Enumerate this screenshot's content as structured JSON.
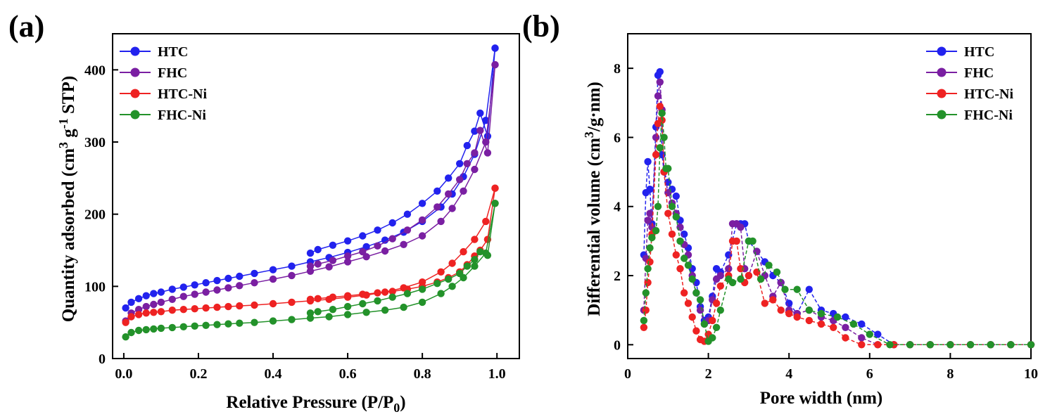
{
  "chart_data": [
    {
      "panel": "(a)",
      "type": "line",
      "title": "",
      "xlabel": "Relative Pressure (P/P",
      "xlabel_sub": "0",
      "xlabel_end": ")",
      "ylabel": "Quantity adsorbed (cm",
      "ylabel_sup1": "3",
      "ylabel_mid": " g",
      "ylabel_sup2": "-1",
      "ylabel_end": " STP)",
      "xlim": [
        -0.03,
        1.06
      ],
      "ylim": [
        0,
        450
      ],
      "xticks": [
        0.0,
        0.2,
        0.4,
        0.6,
        0.8,
        1.0
      ],
      "xtick_labels": [
        "0.0",
        "0.2",
        "0.4",
        "0.6",
        "0.8",
        "1.0"
      ],
      "yticks": [
        0,
        100,
        200,
        300,
        400
      ],
      "ytick_labels": [
        "0",
        "100",
        "200",
        "300",
        "400"
      ],
      "legend_position": "top-left",
      "series": [
        {
          "name": "HTC",
          "color": "#2222ee",
          "adsorption": {
            "x": [
              0.005,
              0.02,
              0.04,
              0.06,
              0.08,
              0.1,
              0.13,
              0.16,
              0.19,
              0.22,
              0.25,
              0.28,
              0.31,
              0.35,
              0.4,
              0.45,
              0.5,
              0.55,
              0.6,
              0.65,
              0.7,
              0.75,
              0.8,
              0.85,
              0.88,
              0.91,
              0.94,
              0.97,
              0.995
            ],
            "y": [
              70,
              78,
              83,
              87,
              90,
              92,
              96,
              99,
              102,
              105,
              108,
              111,
              114,
              118,
              123,
              128,
              134,
              140,
              147,
              155,
              164,
              175,
              190,
              210,
              228,
              252,
              283,
              330,
              430
            ]
          },
          "desorption": {
            "x": [
              0.995,
              0.975,
              0.955,
              0.94,
              0.92,
              0.9,
              0.87,
              0.84,
              0.8,
              0.76,
              0.72,
              0.68,
              0.64,
              0.6,
              0.56,
              0.52,
              0.5
            ],
            "y": [
              430,
              308,
              340,
              315,
              295,
              270,
              250,
              232,
              215,
              200,
              188,
              178,
              170,
              163,
              157,
              151,
              146
            ]
          }
        },
        {
          "name": "FHC",
          "color": "#7a1fa2",
          "adsorption": {
            "x": [
              0.005,
              0.02,
              0.04,
              0.06,
              0.08,
              0.1,
              0.13,
              0.16,
              0.19,
              0.22,
              0.25,
              0.28,
              0.31,
              0.35,
              0.4,
              0.45,
              0.5,
              0.55,
              0.6,
              0.65,
              0.7,
              0.75,
              0.8,
              0.85,
              0.88,
              0.91,
              0.94,
              0.97,
              0.995
            ],
            "y": [
              52,
              63,
              68,
              72,
              75,
              78,
              82,
              86,
              89,
              92,
              95,
              98,
              101,
              105,
              110,
              115,
              121,
              127,
              134,
              141,
              149,
              158,
              170,
              190,
              208,
              232,
              262,
              300,
              407
            ]
          },
          "desorption": {
            "x": [
              0.995,
              0.975,
              0.955,
              0.94,
              0.92,
              0.9,
              0.87,
              0.84,
              0.8,
              0.76,
              0.72,
              0.68,
              0.64,
              0.6,
              0.56,
              0.52,
              0.5
            ],
            "y": [
              407,
              285,
              316,
              285,
              270,
              248,
              228,
              210,
              192,
              178,
              166,
              156,
              148,
              142,
              136,
              131,
              128
            ]
          }
        },
        {
          "name": "HTC-Ni",
          "color": "#ee2222",
          "adsorption": {
            "x": [
              0.005,
              0.02,
              0.04,
              0.06,
              0.08,
              0.1,
              0.13,
              0.16,
              0.19,
              0.22,
              0.25,
              0.28,
              0.31,
              0.35,
              0.4,
              0.45,
              0.5,
              0.55,
              0.6,
              0.65,
              0.7,
              0.75,
              0.8,
              0.85,
              0.88,
              0.91,
              0.94,
              0.97,
              0.995
            ],
            "y": [
              50,
              58,
              61,
              63,
              64,
              65,
              67,
              68,
              69,
              70,
              71,
              72,
              73,
              74,
              76,
              78,
              80,
              82,
              85,
              88,
              92,
              98,
              106,
              120,
              132,
              148,
              165,
              190,
              236
            ]
          },
          "desorption": {
            "x": [
              0.995,
              0.975,
              0.955,
              0.94,
              0.92,
              0.9,
              0.87,
              0.84,
              0.8,
              0.76,
              0.72,
              0.68,
              0.64,
              0.6,
              0.56,
              0.52,
              0.5
            ],
            "y": [
              236,
              165,
              150,
              142,
              130,
              120,
              112,
              106,
              100,
              96,
              93,
              91,
              89,
              87,
              85,
              83,
              82
            ]
          }
        },
        {
          "name": "FHC-Ni",
          "color": "#23922a",
          "adsorption": {
            "x": [
              0.005,
              0.02,
              0.04,
              0.06,
              0.08,
              0.1,
              0.13,
              0.16,
              0.19,
              0.22,
              0.25,
              0.28,
              0.31,
              0.35,
              0.4,
              0.45,
              0.5,
              0.55,
              0.6,
              0.65,
              0.7,
              0.75,
              0.8,
              0.85,
              0.88,
              0.91,
              0.94,
              0.97,
              0.995
            ],
            "y": [
              30,
              36,
              39,
              40,
              41,
              42,
              43,
              44,
              45,
              46,
              47,
              48,
              49,
              50,
              52,
              54,
              56,
              58,
              61,
              64,
              67,
              71,
              78,
              90,
              100,
              112,
              128,
              146,
              215
            ]
          },
          "desorption": {
            "x": [
              0.995,
              0.975,
              0.955,
              0.94,
              0.92,
              0.9,
              0.87,
              0.84,
              0.8,
              0.76,
              0.72,
              0.68,
              0.64,
              0.6,
              0.56,
              0.52,
              0.5
            ],
            "y": [
              215,
              143,
              148,
              137,
              128,
              118,
              110,
              104,
              96,
              90,
              85,
              80,
              76,
              72,
              68,
              65,
              63
            ]
          }
        }
      ]
    },
    {
      "panel": "(b)",
      "type": "line",
      "title": "",
      "xlabel": "Pore width (nm)",
      "ylabel": "Differential volume (cm",
      "ylabel_sup1": "3",
      "ylabel_end": "/g·nm)",
      "xlim": [
        0,
        10
      ],
      "ylim": [
        -0.4,
        9
      ],
      "xticks": [
        0,
        2,
        4,
        6,
        8,
        10
      ],
      "xtick_labels": [
        "0",
        "2",
        "4",
        "6",
        "8",
        "10"
      ],
      "yticks": [
        0,
        2,
        4,
        6,
        8
      ],
      "ytick_labels": [
        "0",
        "2",
        "4",
        "6",
        "8"
      ],
      "legend_position": "top-right",
      "series": [
        {
          "name": "HTC",
          "color": "#2222ee",
          "x": [
            0.4,
            0.45,
            0.5,
            0.55,
            0.6,
            0.7,
            0.75,
            0.8,
            0.85,
            0.9,
            1.0,
            1.1,
            1.2,
            1.3,
            1.4,
            1.5,
            1.6,
            1.7,
            1.8,
            1.9,
            2.0,
            2.1,
            2.2,
            2.3,
            2.5,
            2.7,
            2.8,
            2.9,
            3.0,
            3.2,
            3.4,
            3.6,
            3.8,
            4.0,
            4.2,
            4.5,
            4.8,
            5.1,
            5.4,
            5.8,
            6.2,
            6.6,
            7.0,
            7.5,
            8.0,
            8.5,
            9.0,
            9.5,
            10.0
          ],
          "y": [
            2.6,
            4.4,
            5.3,
            4.5,
            3.5,
            6.3,
            7.8,
            7.9,
            5.5,
            5.0,
            4.7,
            4.5,
            4.3,
            3.6,
            3.2,
            2.8,
            2.2,
            1.8,
            1.1,
            0.7,
            0.8,
            1.4,
            2.2,
            2.1,
            2.6,
            3.5,
            3.5,
            3.5,
            3.0,
            2.7,
            2.4,
            2.0,
            1.8,
            1.2,
            0.9,
            1.6,
            1.0,
            0.9,
            0.8,
            0.6,
            0.3,
            0.0,
            0.0,
            0.0,
            0.0,
            0.0,
            0.0,
            0.0,
            0.0
          ]
        },
        {
          "name": "FHC",
          "color": "#7a1fa2",
          "x": [
            0.4,
            0.45,
            0.5,
            0.55,
            0.6,
            0.7,
            0.75,
            0.8,
            0.85,
            0.9,
            1.0,
            1.1,
            1.2,
            1.3,
            1.4,
            1.5,
            1.6,
            1.7,
            1.8,
            1.9,
            2.0,
            2.1,
            2.2,
            2.3,
            2.5,
            2.6,
            2.7,
            2.8,
            2.9,
            3.0,
            3.2,
            3.4,
            3.6,
            3.8,
            4.0,
            4.2,
            4.5,
            4.8,
            5.1,
            5.4,
            5.8,
            6.2,
            6.6,
            7.0,
            7.5,
            8.0,
            8.5,
            9.0,
            9.5,
            10.0
          ],
          "y": [
            1.0,
            2.5,
            3.6,
            3.8,
            3.4,
            6.0,
            7.2,
            7.6,
            6.8,
            5.0,
            4.4,
            4.1,
            3.8,
            3.4,
            2.9,
            2.6,
            2.0,
            1.5,
            1.0,
            0.6,
            0.7,
            1.3,
            1.9,
            2.0,
            2.2,
            3.5,
            3.5,
            3.4,
            2.2,
            2.0,
            2.7,
            2.0,
            1.4,
            1.8,
            1.0,
            0.9,
            1.0,
            0.8,
            0.7,
            0.5,
            0.2,
            0.0,
            0.0,
            0.0,
            0.0,
            0.0,
            0.0,
            0.0,
            0.0,
            0.0
          ]
        },
        {
          "name": "HTC-Ni",
          "color": "#ee2222",
          "x": [
            0.4,
            0.45,
            0.5,
            0.55,
            0.6,
            0.7,
            0.75,
            0.8,
            0.85,
            0.9,
            1.0,
            1.1,
            1.2,
            1.3,
            1.4,
            1.5,
            1.6,
            1.7,
            1.8,
            1.9,
            2.0,
            2.1,
            2.2,
            2.3,
            2.5,
            2.6,
            2.7,
            2.8,
            2.9,
            3.0,
            3.2,
            3.4,
            3.6,
            3.8,
            4.0,
            4.2,
            4.5,
            4.8,
            5.1,
            5.4,
            5.8,
            6.2,
            6.6,
            7.0,
            7.5,
            8.0,
            8.5,
            9.0,
            9.5,
            10.0
          ],
          "y": [
            0.5,
            1.0,
            1.8,
            2.4,
            3.2,
            5.5,
            6.4,
            6.9,
            6.5,
            5.0,
            3.8,
            3.2,
            2.6,
            2.2,
            1.5,
            1.2,
            0.8,
            0.4,
            0.15,
            0.1,
            0.3,
            0.7,
            1.2,
            1.7,
            2.0,
            3.0,
            3.0,
            2.2,
            1.8,
            2.0,
            2.1,
            1.2,
            1.3,
            1.0,
            0.9,
            0.8,
            0.7,
            0.6,
            0.5,
            0.2,
            0.0,
            0.0,
            0.0,
            0.0,
            0.0,
            0.0,
            0.0,
            0.0,
            0.0,
            0.0
          ]
        },
        {
          "name": "FHC-Ni",
          "color": "#23922a",
          "x": [
            0.4,
            0.45,
            0.5,
            0.55,
            0.6,
            0.7,
            0.75,
            0.8,
            0.85,
            0.9,
            0.95,
            1.0,
            1.1,
            1.2,
            1.3,
            1.4,
            1.5,
            1.6,
            1.7,
            1.8,
            1.9,
            2.0,
            2.1,
            2.2,
            2.3,
            2.5,
            2.6,
            2.8,
            3.0,
            3.1,
            3.3,
            3.5,
            3.7,
            3.9,
            4.2,
            4.5,
            4.8,
            5.2,
            5.6,
            6.0,
            6.5,
            7.0,
            7.5,
            8.0,
            8.5,
            9.0,
            9.5,
            10.0
          ],
          "y": [
            0.7,
            1.5,
            2.2,
            2.8,
            3.1,
            3.3,
            4.0,
            5.7,
            6.7,
            6.0,
            5.1,
            5.1,
            4.0,
            3.7,
            3.0,
            2.5,
            2.3,
            1.9,
            1.5,
            1.3,
            0.6,
            0.1,
            0.2,
            0.5,
            1.0,
            1.9,
            1.8,
            1.9,
            3.0,
            3.0,
            1.9,
            2.3,
            2.1,
            1.6,
            1.6,
            1.0,
            0.9,
            0.8,
            0.6,
            0.3,
            0.0,
            0.0,
            0.0,
            0.0,
            0.0,
            0.0,
            0.0,
            0.0
          ]
        }
      ]
    }
  ]
}
